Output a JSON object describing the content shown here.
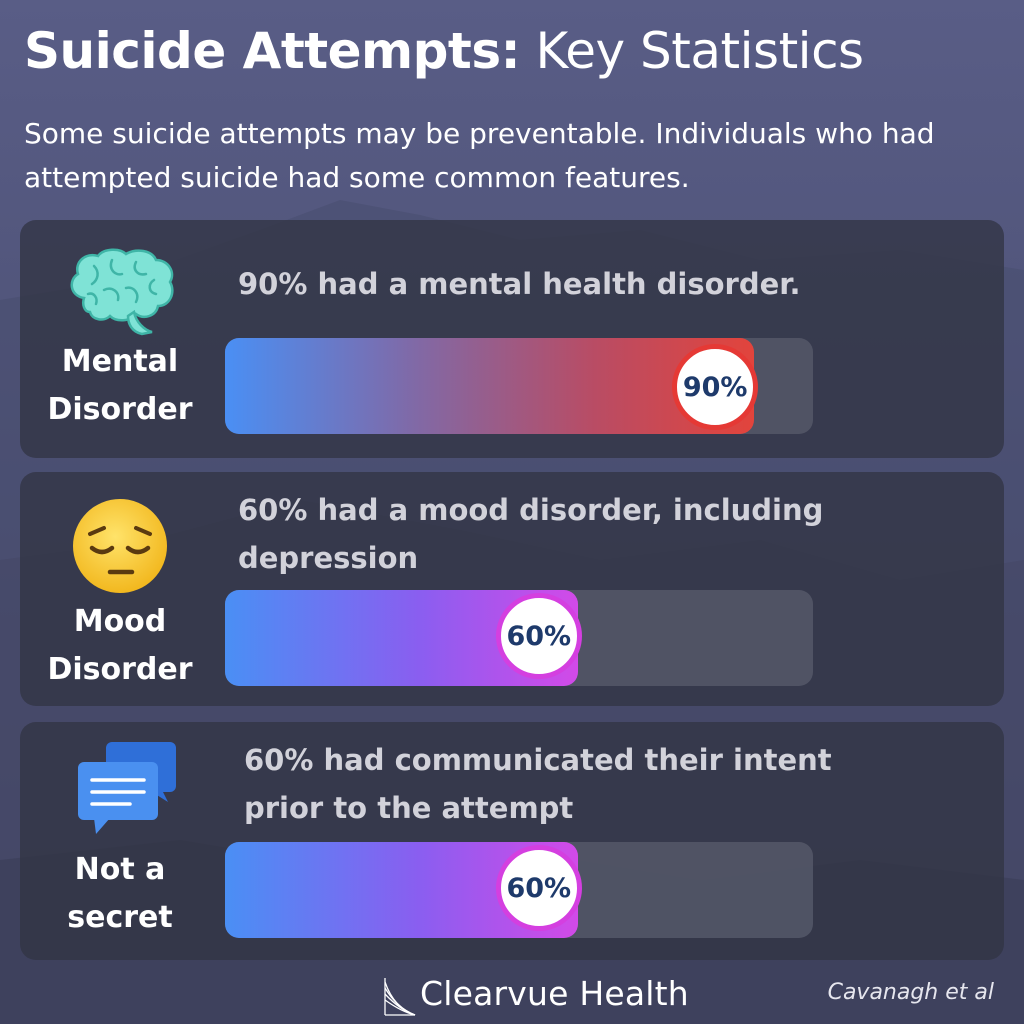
{
  "header": {
    "title_bold": "Suicide Attempts:",
    "title_light": "Key Statistics",
    "subtitle": "Some suicide attempts may be preventable. Individuals who had attempted suicide had some common features."
  },
  "stats": [
    {
      "icon": "brain-icon",
      "label_line1": "Mental",
      "label_line2": "Disorder",
      "text_line1": "90% had a mental health disorder.",
      "text_line2": "",
      "percent": 90,
      "badge": "90%",
      "color": "#e53935"
    },
    {
      "icon": "pensive-face-icon",
      "label_line1": "Mood",
      "label_line2": "Disorder",
      "text_line1": "60% had a mood disorder, including",
      "text_line2": "depression",
      "percent": 60,
      "badge": "60%",
      "color": "#d43fe0"
    },
    {
      "icon": "chat-bubbles-icon",
      "label_line1": "Not a",
      "label_line2": "secret",
      "text_line1": "60% had communicated their intent",
      "text_line2": "prior to the attempt",
      "percent": 60,
      "badge": "60%",
      "color": "#d43fe0"
    }
  ],
  "footer": {
    "brand": "Clearvue Health",
    "citation": "Cavanagh et al"
  }
}
